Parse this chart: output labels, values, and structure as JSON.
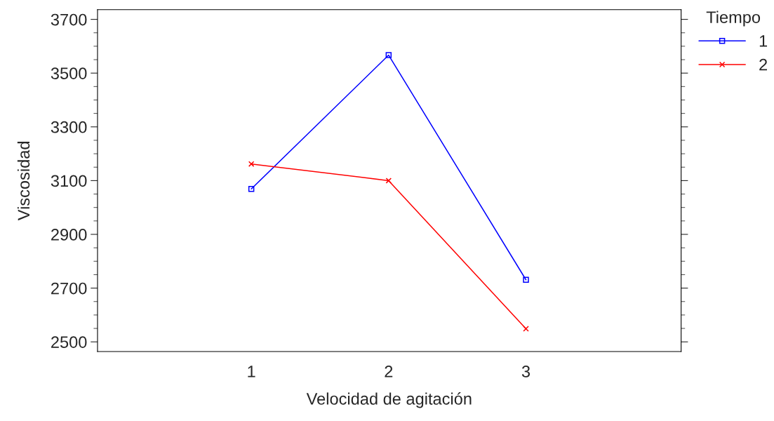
{
  "chart_data": {
    "type": "line",
    "xlabel": "Velocidad de agitación",
    "ylabel": "Viscosidad",
    "legend_title": "Tiempo",
    "categories": [
      "1",
      "2",
      "3"
    ],
    "series": [
      {
        "name": "1",
        "color": "#0000ff",
        "marker": "square",
        "values": [
          3069,
          3567,
          2731
        ]
      },
      {
        "name": "2",
        "color": "#ff0000",
        "marker": "cross",
        "values": [
          3162,
          3100,
          2549
        ]
      }
    ],
    "ylim": [
      2464,
      3736
    ],
    "yticks": [
      2500,
      2700,
      2900,
      3100,
      3300,
      3500,
      3700
    ],
    "grid": false,
    "legend": "top right",
    "line_style": "solid"
  }
}
